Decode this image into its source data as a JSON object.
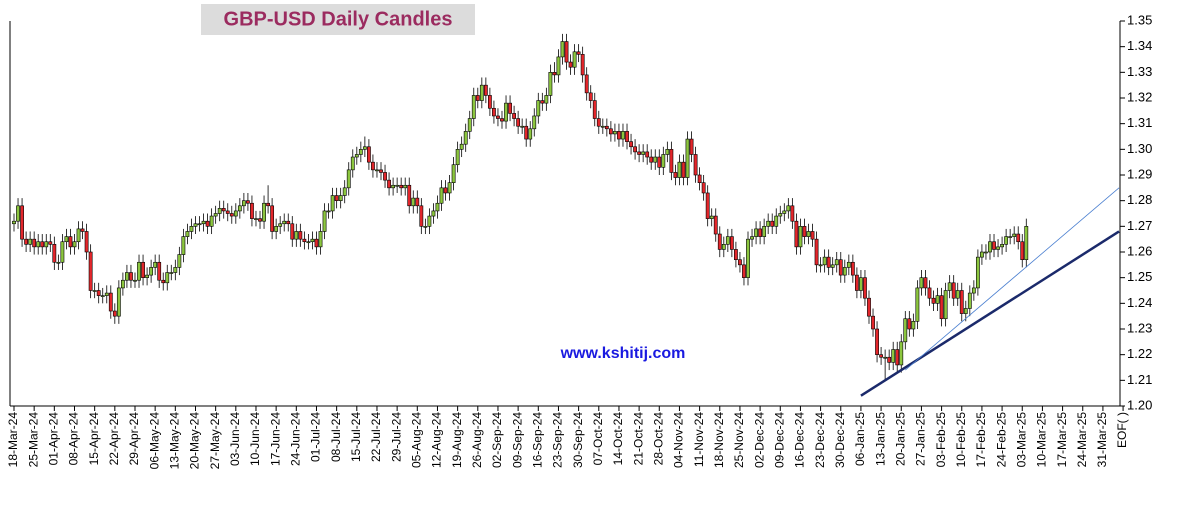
{
  "chart_data": {
    "type": "candlestick",
    "title": "GBP-USD Daily Candles",
    "annotations": [
      "www.kshitij.com"
    ],
    "up_color": "#8cc63f",
    "down_color": "#e3262b",
    "ylim": [
      1.2,
      1.35
    ],
    "yticks": [
      {
        "value": 1.2,
        "label": "1.20"
      },
      1.21,
      1.22,
      1.23,
      1.24,
      1.25,
      1.26,
      1.27,
      1.28,
      1.29,
      {
        "value": 1.3,
        "label": "1.30"
      },
      1.31,
      1.32,
      1.33,
      1.34,
      1.35
    ],
    "categories": [
      "18-Mar-24",
      null,
      null,
      null,
      null,
      "25-Mar-24",
      null,
      null,
      null,
      null,
      "01-Apr-24",
      null,
      null,
      null,
      null,
      "08-Apr-24",
      null,
      null,
      null,
      null,
      "15-Apr-24",
      null,
      null,
      null,
      null,
      "22-Apr-24",
      null,
      null,
      null,
      null,
      "29-Apr-24",
      null,
      null,
      null,
      null,
      "06-May-24",
      null,
      null,
      null,
      null,
      "13-May-24",
      null,
      null,
      null,
      null,
      "20-May-24",
      null,
      null,
      null,
      null,
      "27-May-24",
      null,
      null,
      null,
      null,
      "03-Jun-24",
      null,
      null,
      null,
      null,
      "10-Jun-24",
      null,
      null,
      null,
      null,
      "17-Jun-24",
      null,
      null,
      null,
      null,
      "24-Jun-24",
      null,
      null,
      null,
      null,
      "01-Jul-24",
      null,
      null,
      null,
      null,
      "08-Jul-24",
      null,
      null,
      null,
      null,
      "15-Jul-24",
      null,
      null,
      null,
      null,
      "22-Jul-24",
      null,
      null,
      null,
      null,
      "29-Jul-24",
      null,
      null,
      null,
      null,
      "05-Aug-24",
      null,
      null,
      null,
      null,
      "12-Aug-24",
      null,
      null,
      null,
      null,
      "19-Aug-24",
      null,
      null,
      null,
      null,
      "26-Aug-24",
      null,
      null,
      null,
      null,
      "02-Sep-24",
      null,
      null,
      null,
      null,
      "09-Sep-24",
      null,
      null,
      null,
      null,
      "16-Sep-24",
      null,
      null,
      null,
      null,
      "23-Sep-24",
      null,
      null,
      null,
      null,
      "30-Sep-24",
      null,
      null,
      null,
      null,
      "07-Oct-24",
      null,
      null,
      null,
      null,
      "14-Oct-24",
      null,
      null,
      null,
      null,
      "21-Oct-24",
      null,
      null,
      null,
      null,
      "28-Oct-24",
      null,
      null,
      null,
      null,
      "04-Nov-24",
      null,
      null,
      null,
      null,
      "11-Nov-24",
      null,
      null,
      null,
      null,
      "18-Nov-24",
      null,
      null,
      null,
      null,
      "25-Nov-24",
      null,
      null,
      null,
      null,
      "02-Dec-24",
      null,
      null,
      null,
      null,
      "09-Dec-24",
      null,
      null,
      null,
      null,
      "16-Dec-24",
      null,
      null,
      null,
      null,
      "23-Dec-24",
      null,
      null,
      null,
      null,
      "30-Dec-24",
      null,
      null,
      null,
      null,
      "06-Jan-25",
      null,
      null,
      null,
      null,
      "13-Jan-25",
      null,
      null,
      null,
      null,
      "20-Jan-25",
      null,
      null,
      null,
      null,
      "27-Jan-25",
      null,
      null,
      null,
      null,
      "03-Feb-25",
      null,
      null,
      null,
      null,
      "10-Feb-25",
      null,
      null,
      null,
      null,
      "17-Feb-25",
      null,
      null,
      null,
      null,
      "24-Feb-25",
      null,
      null,
      null,
      null,
      "03-Mar-25",
      null,
      null,
      null,
      null,
      "10-Mar-25",
      null,
      null,
      null,
      null,
      "17-Mar-25",
      null,
      null,
      null,
      null,
      "24-Mar-25",
      null,
      null,
      null,
      null,
      "31-Mar-25",
      null,
      null,
      null,
      null,
      "EOF( )",
      null,
      null,
      null,
      null
    ],
    "open": [
      1.271,
      1.272,
      1.278,
      1.265,
      1.263,
      1.265,
      1.262,
      1.264,
      1.262,
      1.264,
      1.263,
      1.256,
      1.256,
      1.264,
      1.266,
      1.262,
      1.264,
      1.269,
      1.268,
      1.26,
      1.245,
      1.245,
      1.243,
      1.243,
      1.244,
      1.237,
      1.235,
      1.246,
      1.249,
      1.252,
      1.249,
      1.249,
      1.256,
      1.25,
      1.251,
      1.254,
      1.256,
      1.249,
      1.248,
      1.252,
      1.252,
      1.254,
      1.259,
      1.266,
      1.268,
      1.27,
      1.271,
      1.271,
      1.272,
      1.27,
      1.274,
      1.275,
      1.277,
      1.276,
      1.275,
      1.274,
      1.276,
      1.278,
      1.28,
      1.279,
      1.273,
      1.273,
      1.272,
      1.279,
      1.278,
      1.268,
      1.27,
      1.271,
      1.272,
      1.271,
      1.265,
      1.268,
      1.265,
      1.264,
      1.264,
      1.265,
      1.262,
      1.268,
      1.276,
      1.276,
      1.282,
      1.28,
      1.282,
      1.285,
      1.292,
      1.297,
      1.298,
      1.3,
      1.301,
      1.295,
      1.292,
      1.292,
      1.291,
      1.288,
      1.285,
      1.286,
      1.286,
      1.285,
      1.286,
      1.278,
      1.281,
      1.278,
      1.27,
      1.27,
      1.274,
      1.276,
      1.279,
      1.285,
      1.283,
      1.287,
      1.294,
      1.3,
      1.302,
      1.307,
      1.312,
      1.321,
      1.319,
      1.325,
      1.321,
      1.316,
      1.313,
      1.312,
      1.311,
      1.318,
      1.314,
      1.312,
      1.309,
      1.309,
      1.304,
      1.308,
      1.313,
      1.319,
      1.318,
      1.321,
      1.33,
      1.329,
      1.336,
      1.342,
      1.334,
      1.332,
      1.338,
      1.337,
      1.329,
      1.322,
      1.319,
      1.312,
      1.309,
      1.309,
      1.308,
      1.306,
      1.307,
      1.304,
      1.307,
      1.303,
      1.301,
      1.299,
      1.298,
      1.299,
      1.297,
      1.295,
      1.297,
      1.293,
      1.298,
      1.3,
      1.291,
      1.289,
      1.295,
      1.289,
      1.304,
      1.298,
      1.29,
      1.287,
      1.283,
      1.273,
      1.274,
      1.267,
      1.261,
      1.263,
      1.266,
      1.261,
      1.257,
      1.255,
      1.25,
      1.265,
      1.266,
      1.269,
      1.266,
      1.27,
      1.272,
      1.27,
      1.274,
      1.275,
      1.276,
      1.278,
      1.272,
      1.262,
      1.27,
      1.266,
      1.268,
      1.265,
      1.255,
      1.255,
      1.258,
      1.254,
      1.255,
      1.257,
      1.251,
      1.254,
      1.256,
      1.251,
      1.245,
      1.25,
      1.242,
      1.235,
      1.23,
      1.22,
      1.219,
      1.219,
      1.217,
      1.222,
      1.216,
      1.225,
      1.234,
      1.23,
      1.233,
      1.246,
      1.25,
      1.246,
      1.242,
      1.24,
      1.243,
      1.234,
      1.245,
      1.248,
      1.242,
      1.245,
      1.236,
      1.238,
      1.244,
      1.246,
      1.258,
      1.26,
      1.26,
      1.264,
      1.261,
      1.262,
      1.263,
      1.266,
      1.266,
      1.267,
      1.264,
      1.257,
      null,
      null,
      null,
      null,
      null,
      null,
      null,
      null,
      null,
      null,
      null,
      null,
      null,
      null,
      null,
      null,
      null,
      null,
      null,
      null,
      null,
      null,
      null,
      null,
      null,
      null,
      null,
      null
    ],
    "high": [
      1.275,
      1.281,
      1.281,
      1.268,
      1.268,
      1.268,
      1.267,
      1.267,
      1.267,
      1.267,
      1.266,
      1.259,
      1.267,
      1.269,
      1.269,
      1.267,
      1.272,
      1.272,
      1.271,
      1.263,
      1.248,
      1.248,
      1.246,
      1.247,
      1.247,
      1.24,
      1.249,
      1.252,
      1.255,
      1.255,
      1.252,
      1.259,
      1.259,
      1.254,
      1.257,
      1.259,
      1.259,
      1.252,
      1.255,
      1.255,
      1.257,
      1.262,
      1.269,
      1.271,
      1.273,
      1.274,
      1.274,
      1.275,
      1.275,
      1.277,
      1.278,
      1.28,
      1.28,
      1.279,
      1.278,
      1.279,
      1.281,
      1.283,
      1.283,
      1.282,
      1.276,
      1.276,
      1.282,
      1.286,
      1.281,
      1.273,
      1.274,
      1.275,
      1.275,
      1.274,
      1.271,
      1.271,
      1.268,
      1.267,
      1.268,
      1.268,
      1.271,
      1.279,
      1.279,
      1.285,
      1.285,
      1.285,
      1.288,
      1.295,
      1.3,
      1.301,
      1.303,
      1.305,
      1.304,
      1.298,
      1.295,
      1.295,
      1.294,
      1.291,
      1.289,
      1.289,
      1.289,
      1.289,
      1.289,
      1.284,
      1.284,
      1.281,
      1.273,
      1.277,
      1.279,
      1.282,
      1.288,
      1.288,
      1.29,
      1.297,
      1.303,
      1.305,
      1.31,
      1.315,
      1.324,
      1.324,
      1.328,
      1.328,
      1.324,
      1.319,
      1.316,
      1.315,
      1.321,
      1.321,
      1.317,
      1.315,
      1.312,
      1.312,
      1.311,
      1.316,
      1.322,
      1.322,
      1.324,
      1.333,
      1.334,
      1.339,
      1.345,
      1.345,
      1.337,
      1.341,
      1.341,
      1.34,
      1.332,
      1.325,
      1.322,
      1.315,
      1.312,
      1.312,
      1.311,
      1.31,
      1.31,
      1.31,
      1.31,
      1.306,
      1.304,
      1.302,
      1.302,
      1.302,
      1.3,
      1.3,
      1.3,
      1.301,
      1.303,
      1.303,
      1.294,
      1.298,
      1.298,
      1.307,
      1.307,
      1.301,
      1.293,
      1.29,
      1.286,
      1.277,
      1.277,
      1.27,
      1.266,
      1.269,
      1.269,
      1.264,
      1.26,
      1.258,
      1.268,
      1.269,
      1.272,
      1.272,
      1.273,
      1.275,
      1.275,
      1.277,
      1.278,
      1.279,
      1.281,
      1.281,
      1.275,
      1.273,
      1.273,
      1.271,
      1.271,
      1.268,
      1.258,
      1.261,
      1.261,
      1.258,
      1.26,
      1.26,
      1.257,
      1.259,
      1.259,
      1.254,
      1.253,
      1.253,
      1.245,
      1.238,
      1.233,
      1.223,
      1.222,
      1.222,
      1.225,
      1.225,
      1.228,
      1.237,
      1.237,
      1.236,
      1.249,
      1.253,
      1.253,
      1.249,
      1.245,
      1.246,
      1.246,
      1.248,
      1.251,
      1.251,
      1.248,
      1.248,
      1.241,
      1.247,
      1.249,
      1.261,
      1.263,
      1.263,
      1.267,
      1.267,
      1.265,
      1.266,
      1.269,
      1.269,
      1.27,
      1.27,
      1.267,
      1.273,
      null,
      null,
      null,
      null,
      null,
      null,
      null,
      null,
      null,
      null,
      null,
      null,
      null,
      null,
      null,
      null,
      null,
      null,
      null,
      null,
      null,
      null,
      null,
      null,
      null,
      null,
      null,
      null
    ],
    "low": [
      1.268,
      1.269,
      1.262,
      1.26,
      1.26,
      1.259,
      1.259,
      1.259,
      1.259,
      1.26,
      1.253,
      1.253,
      1.253,
      1.261,
      1.259,
      1.259,
      1.261,
      1.265,
      1.257,
      1.242,
      1.242,
      1.24,
      1.24,
      1.24,
      1.234,
      1.232,
      1.232,
      1.243,
      1.246,
      1.246,
      1.246,
      1.246,
      1.247,
      1.247,
      1.248,
      1.251,
      1.246,
      1.245,
      1.245,
      1.249,
      1.249,
      1.251,
      1.256,
      1.263,
      1.265,
      1.267,
      1.268,
      1.268,
      1.267,
      1.267,
      1.271,
      1.272,
      1.273,
      1.272,
      1.271,
      1.271,
      1.273,
      1.275,
      1.276,
      1.27,
      1.27,
      1.269,
      1.269,
      1.275,
      1.265,
      1.265,
      1.267,
      1.268,
      1.268,
      1.262,
      1.262,
      1.262,
      1.261,
      1.261,
      1.261,
      1.259,
      1.259,
      1.265,
      1.273,
      1.273,
      1.277,
      1.277,
      1.279,
      1.282,
      1.289,
      1.294,
      1.295,
      1.297,
      1.292,
      1.289,
      1.289,
      1.288,
      1.285,
      1.282,
      1.282,
      1.283,
      1.282,
      1.282,
      1.275,
      1.275,
      1.275,
      1.267,
      1.267,
      1.267,
      1.271,
      1.273,
      1.276,
      1.28,
      1.28,
      1.284,
      1.291,
      1.297,
      1.299,
      1.304,
      1.309,
      1.316,
      1.316,
      1.318,
      1.313,
      1.31,
      1.309,
      1.308,
      1.308,
      1.311,
      1.309,
      1.306,
      1.306,
      1.301,
      1.301,
      1.305,
      1.31,
      1.315,
      1.315,
      1.318,
      1.326,
      1.326,
      1.333,
      1.331,
      1.329,
      1.329,
      1.334,
      1.326,
      1.319,
      1.316,
      1.309,
      1.306,
      1.306,
      1.305,
      1.303,
      1.303,
      1.301,
      1.301,
      1.3,
      1.298,
      1.296,
      1.295,
      1.295,
      1.294,
      1.292,
      1.292,
      1.29,
      1.29,
      1.295,
      1.288,
      1.286,
      1.286,
      1.286,
      1.286,
      1.295,
      1.287,
      1.284,
      1.28,
      1.27,
      1.27,
      1.264,
      1.258,
      1.258,
      1.26,
      1.258,
      1.254,
      1.252,
      1.247,
      1.247,
      1.262,
      1.263,
      1.263,
      1.263,
      1.267,
      1.267,
      1.267,
      1.271,
      1.272,
      1.273,
      1.269,
      1.259,
      1.259,
      1.263,
      1.263,
      1.262,
      1.252,
      1.252,
      1.252,
      1.251,
      1.251,
      1.252,
      1.248,
      1.248,
      1.251,
      1.248,
      1.242,
      1.242,
      1.239,
      1.232,
      1.227,
      1.217,
      1.216,
      1.21,
      1.214,
      1.214,
      1.213,
      1.213,
      1.222,
      1.227,
      1.227,
      1.23,
      1.243,
      1.243,
      1.239,
      1.237,
      1.237,
      1.231,
      1.231,
      1.242,
      1.239,
      1.239,
      1.233,
      1.233,
      1.235,
      1.241,
      1.243,
      1.255,
      1.257,
      1.257,
      1.258,
      1.258,
      1.259,
      1.26,
      1.263,
      1.263,
      1.261,
      1.254,
      1.254,
      null,
      null,
      null,
      null,
      null,
      null,
      null,
      null,
      null,
      null,
      null,
      null,
      null,
      null,
      null,
      null,
      null,
      null,
      null,
      null,
      null,
      null,
      null,
      null,
      null,
      null,
      null,
      null
    ],
    "close": [
      1.272,
      1.278,
      1.265,
      1.263,
      1.265,
      1.262,
      1.264,
      1.262,
      1.264,
      1.263,
      1.256,
      1.256,
      1.264,
      1.266,
      1.262,
      1.264,
      1.269,
      1.268,
      1.26,
      1.245,
      1.245,
      1.243,
      1.243,
      1.244,
      1.237,
      1.235,
      1.246,
      1.249,
      1.252,
      1.249,
      1.249,
      1.256,
      1.25,
      1.251,
      1.254,
      1.256,
      1.249,
      1.248,
      1.252,
      1.252,
      1.254,
      1.259,
      1.266,
      1.268,
      1.27,
      1.271,
      1.271,
      1.272,
      1.27,
      1.274,
      1.275,
      1.277,
      1.276,
      1.275,
      1.274,
      1.276,
      1.278,
      1.28,
      1.279,
      1.273,
      1.273,
      1.272,
      1.279,
      1.278,
      1.268,
      1.27,
      1.271,
      1.272,
      1.271,
      1.265,
      1.268,
      1.265,
      1.264,
      1.264,
      1.265,
      1.262,
      1.268,
      1.276,
      1.276,
      1.282,
      1.28,
      1.282,
      1.285,
      1.292,
      1.297,
      1.298,
      1.3,
      1.301,
      1.295,
      1.292,
      1.292,
      1.291,
      1.288,
      1.285,
      1.286,
      1.286,
      1.285,
      1.286,
      1.278,
      1.281,
      1.278,
      1.27,
      1.27,
      1.274,
      1.276,
      1.279,
      1.285,
      1.283,
      1.287,
      1.294,
      1.3,
      1.302,
      1.307,
      1.312,
      1.321,
      1.319,
      1.325,
      1.321,
      1.316,
      1.313,
      1.312,
      1.311,
      1.318,
      1.314,
      1.312,
      1.309,
      1.309,
      1.304,
      1.308,
      1.313,
      1.319,
      1.318,
      1.321,
      1.33,
      1.329,
      1.336,
      1.342,
      1.334,
      1.332,
      1.338,
      1.337,
      1.329,
      1.322,
      1.319,
      1.312,
      1.309,
      1.309,
      1.308,
      1.306,
      1.307,
      1.304,
      1.307,
      1.303,
      1.301,
      1.299,
      1.298,
      1.299,
      1.297,
      1.295,
      1.297,
      1.293,
      1.298,
      1.3,
      1.291,
      1.289,
      1.295,
      1.289,
      1.304,
      1.298,
      1.29,
      1.287,
      1.283,
      1.273,
      1.274,
      1.267,
      1.261,
      1.263,
      1.266,
      1.261,
      1.257,
      1.255,
      1.25,
      1.265,
      1.266,
      1.269,
      1.266,
      1.27,
      1.272,
      1.27,
      1.274,
      1.275,
      1.276,
      1.278,
      1.272,
      1.262,
      1.27,
      1.266,
      1.268,
      1.265,
      1.255,
      1.255,
      1.258,
      1.254,
      1.255,
      1.257,
      1.251,
      1.254,
      1.256,
      1.251,
      1.245,
      1.25,
      1.242,
      1.235,
      1.23,
      1.22,
      1.219,
      1.219,
      1.217,
      1.222,
      1.216,
      1.225,
      1.234,
      1.23,
      1.233,
      1.246,
      1.25,
      1.246,
      1.242,
      1.24,
      1.243,
      1.234,
      1.245,
      1.248,
      1.242,
      1.245,
      1.236,
      1.238,
      1.244,
      1.246,
      1.258,
      1.26,
      1.26,
      1.264,
      1.261,
      1.262,
      1.263,
      1.266,
      1.266,
      1.267,
      1.264,
      1.257,
      1.27,
      null,
      null,
      null,
      null,
      null,
      null,
      null,
      null,
      null,
      null,
      null,
      null,
      null,
      null,
      null,
      null,
      null,
      null,
      null,
      null,
      null,
      null,
      null,
      null,
      null,
      null,
      null,
      null
    ],
    "trendlines": [
      {
        "color": "#1b2a6b",
        "width": 2.5,
        "x": [
          210,
          274
        ],
        "y": [
          1.204,
          1.268
        ]
      },
      {
        "color": "#4a7fd0",
        "width": 0.8,
        "x": [
          221,
          274
        ],
        "y": [
          1.214,
          1.285
        ]
      }
    ]
  }
}
